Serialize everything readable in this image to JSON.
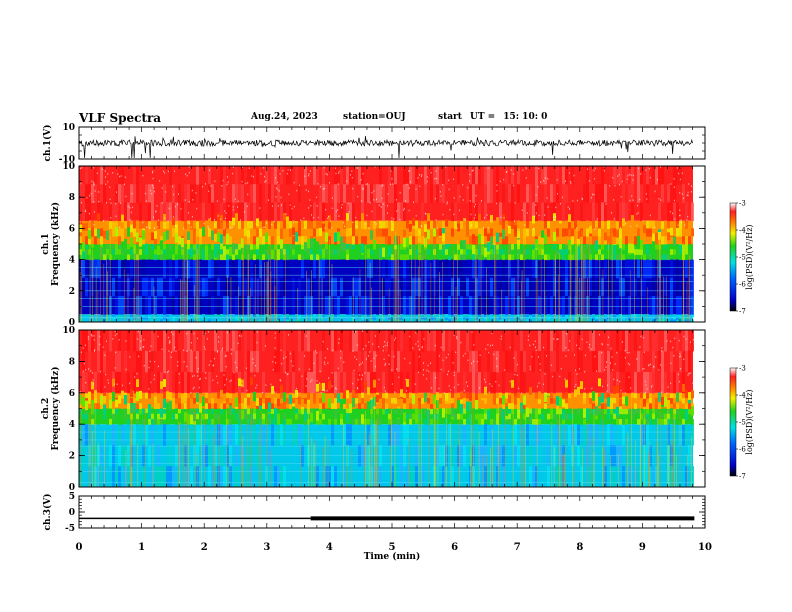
{
  "header": {
    "title": "VLF Spectra",
    "date": "Aug.24, 2023",
    "station": "station=OUJ",
    "start_label": "start",
    "start_ut": "UT =",
    "start_time": "15: 10: 0"
  },
  "chart_data": [
    {
      "type": "line",
      "panel": "ch1-waveform",
      "ylabel": "ch.1(V)",
      "ylim": [
        -10,
        10
      ],
      "yticks": [
        "10",
        "-10"
      ],
      "xlim": [
        0,
        10
      ],
      "baseline": 0
    },
    {
      "type": "heatmap",
      "panel": "ch1-spectrogram",
      "ylabel": "ch.1 Frequency (kHz)",
      "ylabel_lines": [
        "ch.1",
        "Frequency (kHz)"
      ],
      "ylim": [
        0,
        10
      ],
      "yticks": [
        "0",
        "2",
        "4",
        "6",
        "8",
        "10"
      ],
      "xlim": [
        0,
        9.83
      ],
      "colorbar": {
        "label": "log(PSD)(V²/Hz)",
        "range": [
          -7,
          -3
        ],
        "ticks": [
          "-3",
          "-4",
          "-5",
          "-6",
          "-7"
        ]
      },
      "levels": [
        {
          "freq": [
            0,
            0.5
          ],
          "level": "cyan"
        },
        {
          "freq": [
            0.5,
            4
          ],
          "level": "blue"
        },
        {
          "freq": [
            4,
            5
          ],
          "level": "green"
        },
        {
          "freq": [
            5,
            6.5
          ],
          "level": "orange"
        },
        {
          "freq": [
            6.5,
            10
          ],
          "level": "red"
        }
      ]
    },
    {
      "type": "heatmap",
      "panel": "ch2-spectrogram",
      "ylabel": "ch.2 Frequency (kHz)",
      "ylabel_lines": [
        "ch.2",
        "Frequency (kHz)"
      ],
      "ylim": [
        0,
        10
      ],
      "yticks": [
        "0",
        "2",
        "4",
        "6",
        "8",
        "10"
      ],
      "xlim": [
        0,
        9.83
      ],
      "colorbar": {
        "label": "log(PSD)(V²/Hz)",
        "range": [
          -7,
          -3
        ],
        "ticks": [
          "-3",
          "-4",
          "-5",
          "-6",
          "-7"
        ]
      },
      "levels": [
        {
          "freq": [
            0,
            4
          ],
          "level": "cyan"
        },
        {
          "freq": [
            4,
            5
          ],
          "level": "green"
        },
        {
          "freq": [
            5,
            6
          ],
          "level": "orange"
        },
        {
          "freq": [
            6,
            10
          ],
          "level": "red"
        }
      ]
    },
    {
      "type": "line",
      "panel": "ch3-waveform",
      "ylabel": "ch.3(V)",
      "ylim": [
        -5,
        5
      ],
      "yticks": [
        "5",
        "0",
        "-5"
      ],
      "xlim": [
        0,
        10
      ],
      "x": [
        0,
        3.7,
        3.7,
        9.83
      ],
      "y": [
        -2,
        -2,
        -2,
        -2
      ],
      "thick_from": 3.7
    }
  ],
  "xaxis": {
    "label": "Time (min)",
    "ticks": [
      "0",
      "1",
      "2",
      "3",
      "4",
      "5",
      "6",
      "7",
      "8",
      "9",
      "10"
    ]
  }
}
